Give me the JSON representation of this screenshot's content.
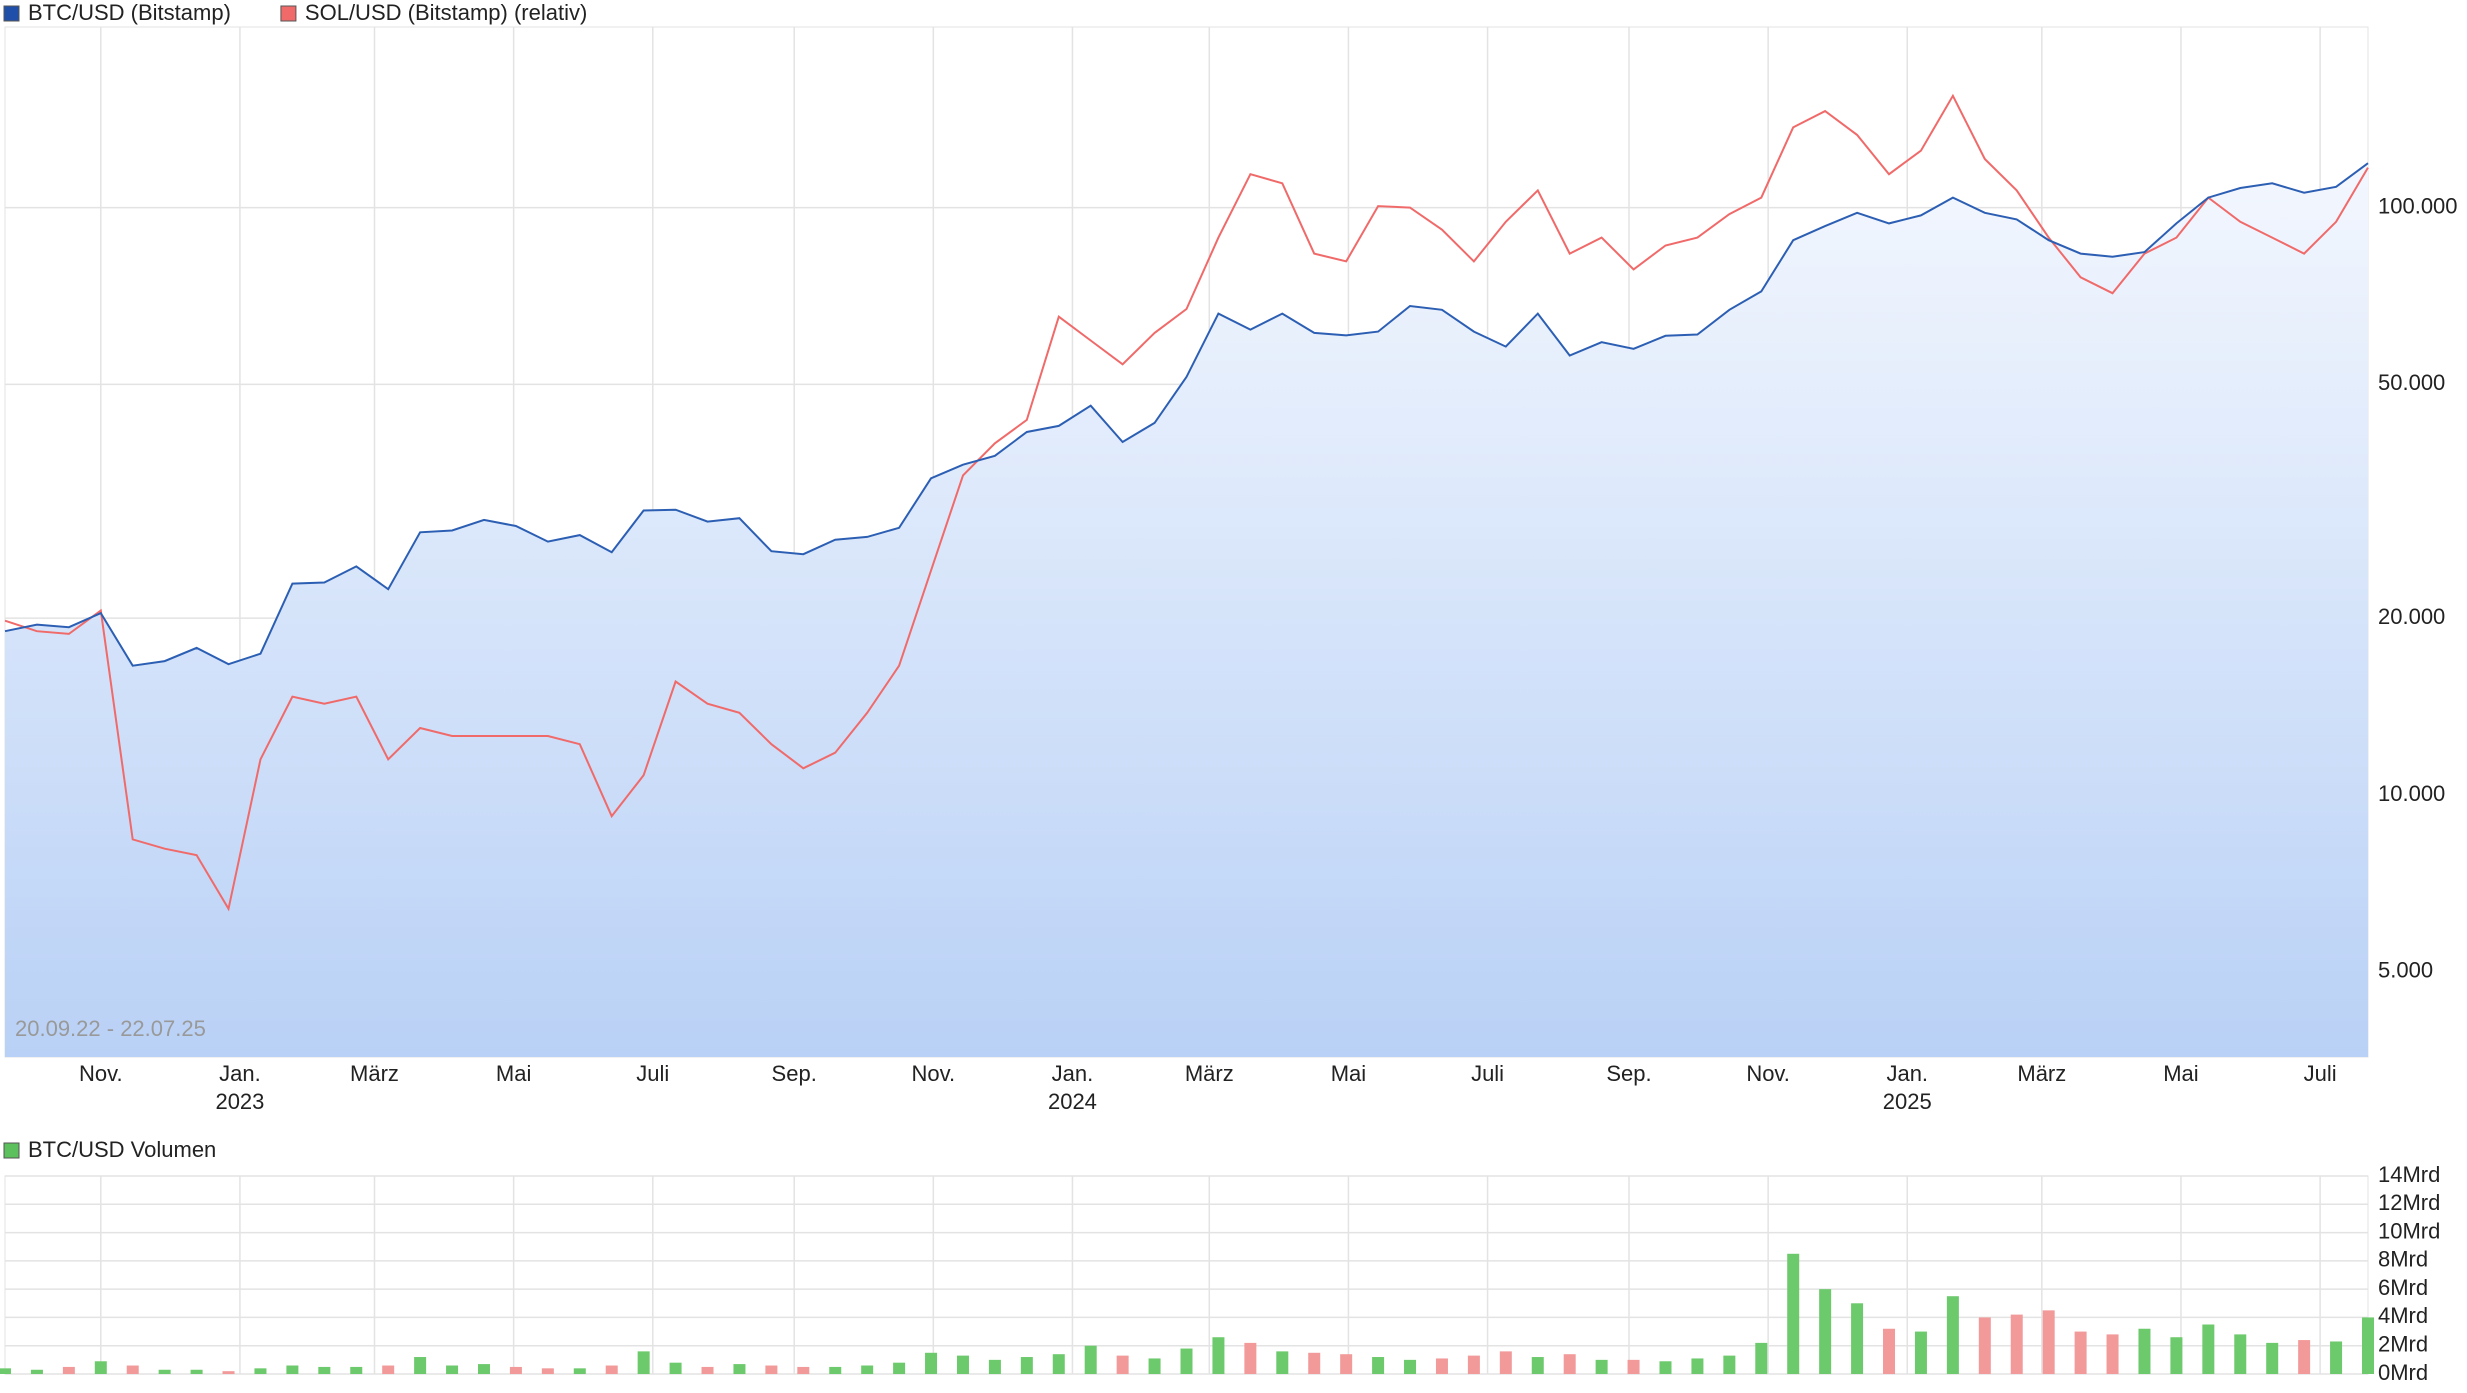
{
  "chart_data": [
    {
      "type": "line",
      "log_scale": true,
      "grid": true,
      "legend": "top-left",
      "date_range": "20.09.22 - 22.07.25",
      "xlim": [
        "2022-09-20",
        "2025-07-22"
      ],
      "ylim": [
        3580,
        203000
      ],
      "yticks": [
        {
          "value": 5000,
          "label": "5.000"
        },
        {
          "value": 10000,
          "label": "10.000"
        },
        {
          "value": 20000,
          "label": "20.000"
        },
        {
          "value": 50000,
          "label": "50.000"
        },
        {
          "value": 100000,
          "label": "100.000"
        }
      ],
      "xticks": [
        {
          "value": "2022-11-01",
          "label": "Nov."
        },
        {
          "value": "2023-01-01",
          "label": "Jan."
        },
        {
          "value": "2023-03-01",
          "label": "März"
        },
        {
          "value": "2023-05-01",
          "label": "Mai"
        },
        {
          "value": "2023-07-01",
          "label": "Juli"
        },
        {
          "value": "2023-09-01",
          "label": "Sep."
        },
        {
          "value": "2023-11-01",
          "label": "Nov."
        },
        {
          "value": "2024-01-01",
          "label": "Jan."
        },
        {
          "value": "2024-03-01",
          "label": "März"
        },
        {
          "value": "2024-05-01",
          "label": "Mai"
        },
        {
          "value": "2024-07-01",
          "label": "Juli"
        },
        {
          "value": "2024-09-01",
          "label": "Sep."
        },
        {
          "value": "2024-11-01",
          "label": "Nov."
        },
        {
          "value": "2025-01-01",
          "label": "Jan."
        },
        {
          "value": "2025-03-01",
          "label": "März"
        },
        {
          "value": "2025-05-01",
          "label": "Mai"
        },
        {
          "value": "2025-07-01",
          "label": "Juli"
        }
      ],
      "xtick_years": [
        {
          "value": "2023-01-01",
          "label": "2023"
        },
        {
          "value": "2024-01-01",
          "label": "2024"
        },
        {
          "value": "2025-01-01",
          "label": "2025"
        }
      ],
      "x": [
        "2022-09-20",
        "2022-10-04",
        "2022-10-18",
        "2022-11-01",
        "2022-11-15",
        "2022-11-29",
        "2022-12-13",
        "2022-12-27",
        "2023-01-10",
        "2023-01-24",
        "2023-02-07",
        "2023-02-21",
        "2023-03-07",
        "2023-03-21",
        "2023-04-04",
        "2023-04-18",
        "2023-05-02",
        "2023-05-16",
        "2023-05-30",
        "2023-06-13",
        "2023-06-27",
        "2023-07-11",
        "2023-07-25",
        "2023-08-08",
        "2023-08-22",
        "2023-09-05",
        "2023-09-19",
        "2023-10-03",
        "2023-10-17",
        "2023-10-31",
        "2023-11-14",
        "2023-11-28",
        "2023-12-12",
        "2023-12-26",
        "2024-01-09",
        "2024-01-23",
        "2024-02-06",
        "2024-02-20",
        "2024-03-05",
        "2024-03-19",
        "2024-04-02",
        "2024-04-16",
        "2024-04-30",
        "2024-05-14",
        "2024-05-28",
        "2024-06-11",
        "2024-06-25",
        "2024-07-09",
        "2024-07-23",
        "2024-08-06",
        "2024-08-20",
        "2024-09-03",
        "2024-09-17",
        "2024-10-01",
        "2024-10-15",
        "2024-10-29",
        "2024-11-12",
        "2024-11-26",
        "2024-12-10",
        "2024-12-24",
        "2025-01-07",
        "2025-01-21",
        "2025-02-04",
        "2025-02-18",
        "2025-03-04",
        "2025-03-18",
        "2025-04-01",
        "2025-04-15",
        "2025-04-29",
        "2025-05-13",
        "2025-05-27",
        "2025-06-10",
        "2025-06-24",
        "2025-07-08",
        "2025-07-22"
      ],
      "series": [
        {
          "name": "BTC/USD (Bitstamp)",
          "color": "#2c5fb3",
          "legend_color": "#1f4fa8",
          "area": true,
          "values": [
            19000,
            19500,
            19300,
            20400,
            16600,
            16900,
            17800,
            16700,
            17400,
            22900,
            23000,
            24500,
            22400,
            28000,
            28200,
            29400,
            28700,
            27000,
            27700,
            25900,
            30500,
            30600,
            29200,
            29600,
            26000,
            25700,
            27200,
            27500,
            28500,
            34600,
            36500,
            37800,
            41500,
            42500,
            46000,
            39900,
            43000,
            51500,
            66000,
            62000,
            66000,
            61200,
            60600,
            61500,
            68000,
            67000,
            61500,
            58000,
            66000,
            56000,
            59000,
            57500,
            60500,
            60800,
            67000,
            72000,
            88000,
            93000,
            98000,
            94000,
            97000,
            104000,
            98000,
            95500,
            88000,
            83500,
            82500,
            84000,
            94000,
            104000,
            108000,
            110000,
            106000,
            108500,
            119000
          ]
        },
        {
          "name": "SOL/USD (Bitstamp) (relativ)",
          "color": "#f06a6a",
          "legend_color": "#f06a6a",
          "values": [
            19800,
            19000,
            18800,
            20600,
            8400,
            8100,
            7900,
            6400,
            11500,
            14700,
            14300,
            14700,
            11500,
            13000,
            12600,
            12600,
            12600,
            12600,
            12200,
            9200,
            10800,
            15600,
            14300,
            13800,
            12200,
            11100,
            11800,
            13800,
            16600,
            24100,
            35000,
            39700,
            43500,
            65200,
            59400,
            54100,
            61200,
            67200,
            88900,
            114000,
            110000,
            83500,
            81000,
            100600,
            100000,
            91700,
            81000,
            94600,
            107000,
            83500,
            88900,
            78500,
            86200,
            88900,
            97500,
            104000,
            137000,
            146000,
            133000,
            114000,
            125000,
            155000,
            121000,
            107000,
            88900,
            76100,
            71500,
            83500,
            88900,
            104000,
            94600,
            88900,
            83500,
            94600,
            117000
          ]
        }
      ]
    },
    {
      "type": "bar",
      "grid": true,
      "xlim": [
        "2022-09-20",
        "2025-07-22"
      ],
      "ylim": [
        0,
        14
      ],
      "yticks": [
        {
          "value": 0,
          "label": "0Mrd"
        },
        {
          "value": 2,
          "label": "2Mrd"
        },
        {
          "value": 4,
          "label": "4Mrd"
        },
        {
          "value": 6,
          "label": "6Mrd"
        },
        {
          "value": 8,
          "label": "8Mrd"
        },
        {
          "value": 10,
          "label": "10Mrd"
        },
        {
          "value": 12,
          "label": "12Mrd"
        },
        {
          "value": 14,
          "label": "14Mrd"
        }
      ],
      "down_color": "#f29a9a",
      "x": [
        "2022-09-20",
        "2022-10-04",
        "2022-10-18",
        "2022-11-01",
        "2022-11-15",
        "2022-11-29",
        "2022-12-13",
        "2022-12-27",
        "2023-01-10",
        "2023-01-24",
        "2023-02-07",
        "2023-02-21",
        "2023-03-07",
        "2023-03-21",
        "2023-04-04",
        "2023-04-18",
        "2023-05-02",
        "2023-05-16",
        "2023-05-30",
        "2023-06-13",
        "2023-06-27",
        "2023-07-11",
        "2023-07-25",
        "2023-08-08",
        "2023-08-22",
        "2023-09-05",
        "2023-09-19",
        "2023-10-03",
        "2023-10-17",
        "2023-10-31",
        "2023-11-14",
        "2023-11-28",
        "2023-12-12",
        "2023-12-26",
        "2024-01-09",
        "2024-01-23",
        "2024-02-06",
        "2024-02-20",
        "2024-03-05",
        "2024-03-19",
        "2024-04-02",
        "2024-04-16",
        "2024-04-30",
        "2024-05-14",
        "2024-05-28",
        "2024-06-11",
        "2024-06-25",
        "2024-07-09",
        "2024-07-23",
        "2024-08-06",
        "2024-08-20",
        "2024-09-03",
        "2024-09-17",
        "2024-10-01",
        "2024-10-15",
        "2024-10-29",
        "2024-11-12",
        "2024-11-26",
        "2024-12-10",
        "2024-12-24",
        "2025-01-07",
        "2025-01-21",
        "2025-02-04",
        "2025-02-18",
        "2025-03-04",
        "2025-03-18",
        "2025-04-01",
        "2025-04-15",
        "2025-04-29",
        "2025-05-13",
        "2025-05-27",
        "2025-06-10",
        "2025-06-24",
        "2025-07-08",
        "2025-07-22"
      ],
      "series": [
        {
          "name": "BTC/USD Volumen",
          "color": "#6cc96c",
          "legend_color": "#5cc15c",
          "values": [
            0.4,
            0.3,
            0.5,
            0.9,
            0.6,
            0.3,
            0.3,
            0.2,
            0.4,
            0.6,
            0.5,
            0.5,
            0.6,
            1.2,
            0.6,
            0.7,
            0.5,
            0.4,
            0.4,
            0.6,
            1.6,
            0.8,
            0.5,
            0.7,
            0.6,
            0.5,
            0.5,
            0.6,
            0.8,
            1.5,
            1.3,
            1.0,
            1.2,
            1.4,
            2.0,
            1.3,
            1.1,
            1.8,
            2.6,
            2.2,
            1.6,
            1.5,
            1.4,
            1.2,
            1.0,
            1.1,
            1.3,
            1.6,
            1.2,
            1.4,
            1.0,
            1.0,
            0.9,
            1.1,
            1.3,
            2.2,
            8.5,
            6.0,
            5.0,
            3.2,
            3.0,
            5.5,
            4.0,
            4.2,
            4.5,
            3.0,
            2.8,
            3.2,
            2.6,
            3.5,
            2.8,
            2.2,
            2.4,
            2.3,
            4.0
          ]
        }
      ]
    }
  ]
}
